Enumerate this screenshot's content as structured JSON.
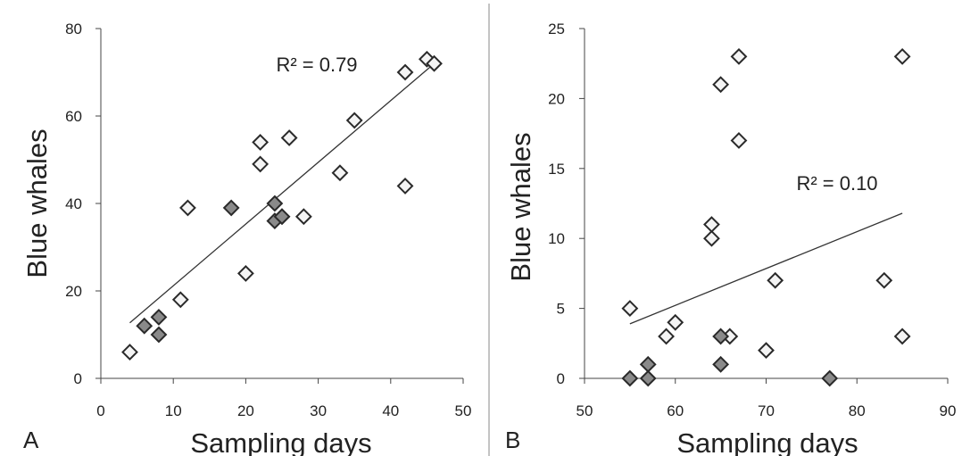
{
  "chart_data": [
    {
      "panel_label": "A",
      "type": "scatter",
      "xlabel": "Sampling days",
      "ylabel": "Blue whales",
      "xlim": [
        0,
        50
      ],
      "ylim": [
        0,
        80
      ],
      "xticks": [
        0,
        10,
        20,
        30,
        40,
        50
      ],
      "yticks": [
        0,
        20,
        40,
        60,
        80
      ],
      "grid": false,
      "annotation": "R² = 0.79",
      "trendline": {
        "x": [
          4,
          46
        ],
        "y": [
          12.7,
          72.0
        ]
      },
      "series": [
        {
          "style": "light",
          "points": [
            {
              "x": 4,
              "y": 6
            },
            {
              "x": 11,
              "y": 18
            },
            {
              "x": 12,
              "y": 39
            },
            {
              "x": 20,
              "y": 24
            },
            {
              "x": 22,
              "y": 49
            },
            {
              "x": 22,
              "y": 54
            },
            {
              "x": 25,
              "y": 37
            },
            {
              "x": 26,
              "y": 55
            },
            {
              "x": 28,
              "y": 37
            },
            {
              "x": 33,
              "y": 47
            },
            {
              "x": 35,
              "y": 59
            },
            {
              "x": 42,
              "y": 44
            },
            {
              "x": 42,
              "y": 70
            },
            {
              "x": 45,
              "y": 73
            },
            {
              "x": 46,
              "y": 72
            }
          ]
        },
        {
          "style": "dark",
          "points": [
            {
              "x": 6,
              "y": 12
            },
            {
              "x": 8,
              "y": 14
            },
            {
              "x": 8,
              "y": 10
            },
            {
              "x": 18,
              "y": 39
            },
            {
              "x": 24,
              "y": 40
            },
            {
              "x": 24,
              "y": 36
            },
            {
              "x": 25,
              "y": 37
            }
          ]
        }
      ]
    },
    {
      "panel_label": "B",
      "type": "scatter",
      "xlabel": "Sampling days",
      "ylabel": "Blue whales",
      "xlim": [
        50,
        90
      ],
      "ylim": [
        0,
        25
      ],
      "xticks": [
        50,
        60,
        70,
        80,
        90
      ],
      "yticks": [
        0,
        5,
        10,
        15,
        20,
        25
      ],
      "grid": false,
      "annotation": "R² = 0.10",
      "trendline": {
        "x": [
          55,
          85
        ],
        "y": [
          3.9,
          11.8
        ]
      },
      "series": [
        {
          "style": "light",
          "points": [
            {
              "x": 55,
              "y": 5
            },
            {
              "x": 59,
              "y": 3
            },
            {
              "x": 60,
              "y": 4
            },
            {
              "x": 64,
              "y": 10
            },
            {
              "x": 64,
              "y": 11
            },
            {
              "x": 65,
              "y": 21
            },
            {
              "x": 66,
              "y": 3
            },
            {
              "x": 67,
              "y": 17
            },
            {
              "x": 67,
              "y": 23
            },
            {
              "x": 70,
              "y": 2
            },
            {
              "x": 71,
              "y": 7
            },
            {
              "x": 83,
              "y": 7
            },
            {
              "x": 85,
              "y": 23
            },
            {
              "x": 85,
              "y": 3
            }
          ]
        },
        {
          "style": "dark",
          "points": [
            {
              "x": 55,
              "y": 0
            },
            {
              "x": 57,
              "y": 1
            },
            {
              "x": 57,
              "y": 0
            },
            {
              "x": 65,
              "y": 3
            },
            {
              "x": 65,
              "y": 1
            },
            {
              "x": 77,
              "y": 0
            }
          ]
        }
      ]
    }
  ],
  "colors": {
    "light_marker_fill": "#f4f4f4",
    "dark_marker_fill": "#8a8a8a",
    "marker_stroke": "#2a2a2a",
    "axis": "#444444",
    "divider": "#888888"
  }
}
